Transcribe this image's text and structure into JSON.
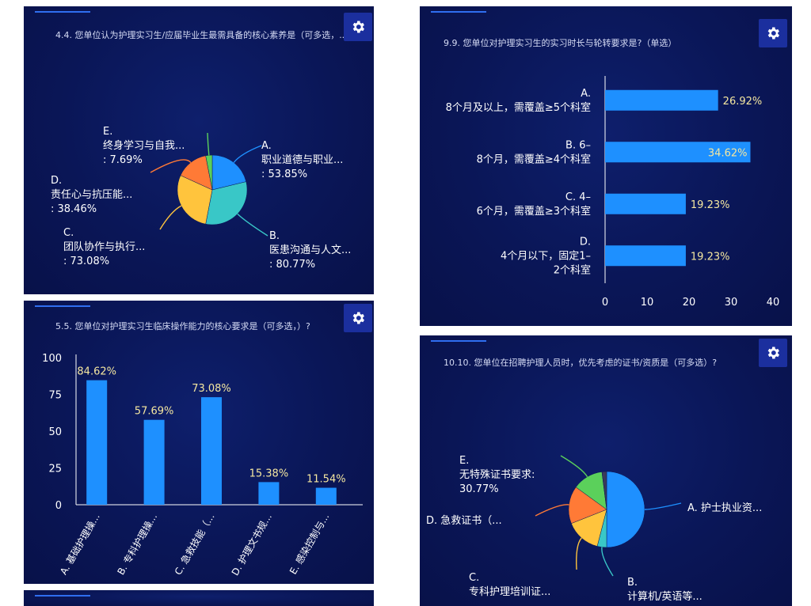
{
  "panels": {
    "q4": {
      "title": "4.4. 您单位认为护理实习生/应届毕业生最需具备的核心素养是（可多选，..."
    },
    "q5": {
      "title": "5.5. 您单位对护理实习生临床操作能力的核心要求是（可多选，）?"
    },
    "q9": {
      "title": "9.9. 您单位对护理实习生的实习时长与轮转要求是?（单选）"
    },
    "q10": {
      "title": "10.10. 您单位在招聘护理人员时，优先考虑的证书/资质是（可多选）?"
    }
  },
  "icons": {
    "settings": "gear-icon"
  },
  "colors": {
    "panel_bg": "#0a1657",
    "bar": "#1e90ff",
    "axis_text": "#ffffff",
    "value_text": "#f5e7a0",
    "label_text": "#ffffff"
  },
  "chart_data": [
    {
      "id": "q4",
      "type": "pie",
      "slices": [
        {
          "letter": "A.",
          "label": "职业道德与职业...",
          "pct": ": 53.85%",
          "value": 53.85,
          "color": "#1e90ff",
          "leader": "#1e90ff"
        },
        {
          "letter": "B.",
          "label": "医患沟通与人文...",
          "pct": ": 80.77%",
          "value": 80.77,
          "color": "#39c7c7",
          "leader": "#39c7c7"
        },
        {
          "letter": "C.",
          "label": "团队协作与执行...",
          "pct": ": 73.08%",
          "value": 73.08,
          "color": "#ffc43d",
          "leader": "#ffc43d"
        },
        {
          "letter": "D.",
          "label": "责任心与抗压能...",
          "pct": ": 38.46%",
          "value": 38.46,
          "color": "#ff7a36",
          "leader": "#ff7a36"
        },
        {
          "letter": "E.",
          "label": "终身学习与自我...",
          "pct": ": 7.69%",
          "value": 7.69,
          "color": "#5bd05b",
          "leader": "#5bd05b"
        }
      ]
    },
    {
      "id": "q5",
      "type": "bar",
      "categories": [
        "A. 基础护理操...",
        "B. 专科护理操...",
        "C. 急救技能（...",
        "D. 护理文书规...",
        "E. 感染控制与..."
      ],
      "values": [
        84.62,
        57.69,
        73.08,
        15.38,
        11.54
      ],
      "value_labels": [
        "84.62%",
        "57.69%",
        "73.08%",
        "15.38%",
        "11.54%"
      ],
      "ylim": [
        0,
        100
      ],
      "yticks": [
        "0",
        "25",
        "50",
        "75",
        "100"
      ]
    },
    {
      "id": "q9",
      "type": "bar",
      "orientation": "horizontal",
      "categories": [
        [
          "A.",
          "8个月及以上，需覆盖≥5个科室"
        ],
        [
          "B. 6–",
          "8个月，需覆盖≥4个科室"
        ],
        [
          "C. 4–",
          "6个月，需覆盖≥3个科室"
        ],
        [
          "D.",
          "4个月以下，固定1–",
          "2个科室"
        ]
      ],
      "values": [
        26.92,
        34.62,
        19.23,
        19.23
      ],
      "value_labels": [
        "26.92%",
        "34.62%",
        "19.23%",
        "19.23%"
      ],
      "xlim": [
        0,
        40
      ],
      "xticks": [
        "0",
        "10",
        "20",
        "30",
        "40"
      ]
    },
    {
      "id": "q10",
      "type": "pie",
      "slices": [
        {
          "text": [
            "A. 护士执业资..."
          ],
          "value": 50,
          "color": "#1e90ff"
        },
        {
          "text": [
            "B.",
            "计算机/英语等..."
          ],
          "value": 4,
          "color": "#39c7c7"
        },
        {
          "text": [
            "C.",
            "专科护理培训证..."
          ],
          "value": 15,
          "color": "#ffc43d"
        },
        {
          "text": [
            "D. 急救证书（..."
          ],
          "value": 16,
          "color": "#ff7a36"
        },
        {
          "text": [
            "E.",
            "无特殊证书要求:",
            "30.77%"
          ],
          "value": 13,
          "color": "#5bd05b"
        },
        {
          "text": [],
          "value": 2,
          "color": "#3a3a5a"
        }
      ]
    }
  ]
}
